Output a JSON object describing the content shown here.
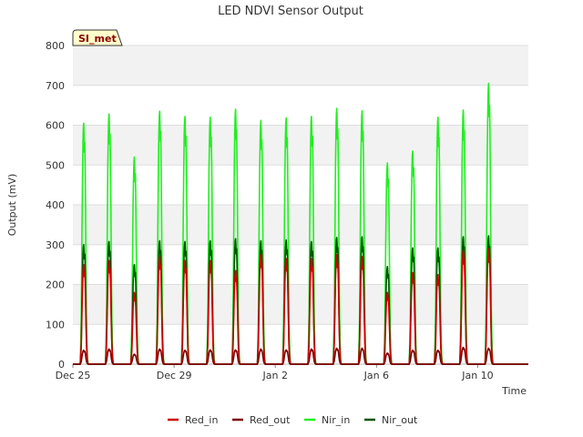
{
  "chart_data": {
    "type": "line",
    "title": "LED NDVI Sensor Output",
    "xlabel": "Time",
    "ylabel": "Output (mV)",
    "site_badge": "SI_met",
    "ylim": [
      0,
      800
    ],
    "yticks": [
      0,
      100,
      200,
      300,
      400,
      500,
      600,
      700,
      800
    ],
    "xlim": [
      "2024-12-25",
      "2025-01-12"
    ],
    "xticks": [
      {
        "date": "2024-12-25",
        "label": "Dec 25"
      },
      {
        "date": "2024-12-29",
        "label": "Dec 29"
      },
      {
        "date": "2025-01-02",
        "label": "Jan 2"
      },
      {
        "date": "2025-01-06",
        "label": "Jan 6"
      },
      {
        "date": "2025-01-10",
        "label": "Jan 10"
      }
    ],
    "legend_position": "bottom",
    "grid": true,
    "x": [
      "2024-12-25",
      "2024-12-26",
      "2024-12-27",
      "2024-12-28",
      "2024-12-29",
      "2024-12-30",
      "2024-12-31",
      "2025-01-01",
      "2025-01-02",
      "2025-01-03",
      "2025-01-04",
      "2025-01-05",
      "2025-01-06",
      "2025-01-07",
      "2025-01-08",
      "2025-01-09",
      "2025-01-10",
      "2025-01-11"
    ],
    "series": [
      {
        "name": "Red_in",
        "color": "#cc0000",
        "values": [
          250,
          260,
          180,
          270,
          260,
          260,
          235,
          275,
          265,
          265,
          275,
          270,
          180,
          230,
          225,
          285,
          290,
          null
        ]
      },
      {
        "name": "Red_out",
        "color": "#7a0000",
        "values": [
          35,
          38,
          25,
          38,
          35,
          36,
          36,
          38,
          36,
          38,
          40,
          40,
          28,
          35,
          35,
          42,
          40,
          null
        ]
      },
      {
        "name": "Nir_in",
        "color": "#22ee22",
        "values": [
          605,
          628,
          520,
          635,
          622,
          620,
          640,
          612,
          618,
          622,
          642,
          636,
          505,
          535,
          620,
          638,
          705,
          null
        ]
      },
      {
        "name": "Nir_out",
        "color": "#005500",
        "values": [
          300,
          308,
          250,
          310,
          308,
          310,
          315,
          310,
          312,
          308,
          318,
          320,
          245,
          292,
          292,
          320,
          322,
          null
        ]
      }
    ]
  }
}
